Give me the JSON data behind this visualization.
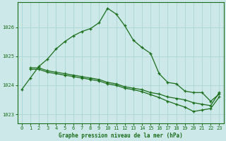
{
  "title": "Graphe pression niveau de la mer (hPa)",
  "bg_color": "#cce8e8",
  "grid_color": "#b0d8d8",
  "line_color": "#1a6e1a",
  "xlim": [
    -0.5,
    23.5
  ],
  "ylim": [
    1022.7,
    1026.85
  ],
  "yticks": [
    1023,
    1024,
    1025,
    1026
  ],
  "xticks": [
    0,
    1,
    2,
    3,
    4,
    5,
    6,
    7,
    8,
    9,
    10,
    11,
    12,
    13,
    14,
    15,
    16,
    17,
    18,
    19,
    20,
    21,
    22,
    23
  ],
  "series1_x": [
    0,
    1,
    2,
    3,
    4,
    5,
    6,
    7,
    8,
    9,
    10,
    11,
    12,
    13,
    14,
    15,
    16,
    17,
    18,
    19,
    20,
    21,
    22,
    23
  ],
  "series1_y": [
    1023.85,
    1024.25,
    1024.65,
    1024.9,
    1025.25,
    1025.5,
    1025.7,
    1025.85,
    1025.95,
    1026.15,
    1026.65,
    1026.45,
    1026.05,
    1025.55,
    1025.3,
    1025.1,
    1024.4,
    1024.1,
    1024.05,
    1023.8,
    1023.75,
    1023.75,
    1023.45,
    1023.7
  ],
  "series2_x": [
    1,
    2,
    3,
    4,
    5,
    6,
    7,
    8,
    9,
    10,
    11,
    12,
    13,
    14,
    15,
    16,
    17,
    18,
    19,
    20,
    21,
    22,
    23
  ],
  "series2_y": [
    1024.6,
    1024.6,
    1024.5,
    1024.45,
    1024.4,
    1024.35,
    1024.3,
    1024.25,
    1024.2,
    1024.1,
    1024.05,
    1023.95,
    1023.9,
    1023.85,
    1023.75,
    1023.7,
    1023.6,
    1023.55,
    1023.5,
    1023.4,
    1023.35,
    1023.3,
    1023.75
  ],
  "series3_x": [
    1,
    2,
    3,
    4,
    5,
    6,
    7,
    8,
    9,
    10,
    11,
    12,
    13,
    14,
    15,
    16,
    17,
    18,
    19,
    20,
    21,
    22,
    23
  ],
  "series3_y": [
    1024.55,
    1024.55,
    1024.45,
    1024.4,
    1024.35,
    1024.3,
    1024.25,
    1024.2,
    1024.15,
    1024.05,
    1024.0,
    1023.9,
    1023.85,
    1023.78,
    1023.68,
    1023.58,
    1023.45,
    1023.35,
    1023.25,
    1023.1,
    1023.15,
    1023.2,
    1023.6
  ]
}
